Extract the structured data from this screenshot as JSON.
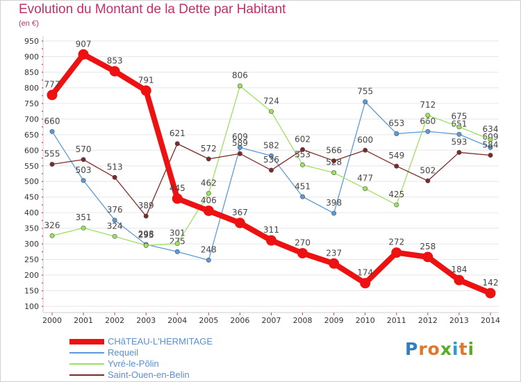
{
  "header": {
    "title": "Evolution du Montant de la Dette par Habitant",
    "subtitle": "(en €)"
  },
  "logo": {
    "letters": [
      "P",
      "r",
      "o",
      "x",
      "i",
      "t",
      "i"
    ],
    "colors": [
      "#2f7fc2",
      "#e0782a",
      "#e0782a",
      "#5aaa2a",
      "#2f9ad0",
      "#e0782a",
      "#5aaa2a"
    ]
  },
  "chart_data": {
    "type": "line",
    "title": "Evolution du Montant de la Dette par Habitant",
    "subtitle": "(en €)",
    "xlabel": "",
    "ylabel": "",
    "x": [
      "2000",
      "2001",
      "2002",
      "2003",
      "2004",
      "2005",
      "2006",
      "2007",
      "2008",
      "2009",
      "2010",
      "2011",
      "2012",
      "2013",
      "2014"
    ],
    "ylim": [
      100,
      950
    ],
    "yticks": [
      100,
      150,
      200,
      250,
      300,
      350,
      400,
      450,
      500,
      550,
      600,
      650,
      700,
      750,
      800,
      850,
      900,
      950
    ],
    "grid": "horizontal",
    "legend_position": "bottom-left",
    "series": [
      {
        "name": "Requeil",
        "color": "#5b9bd5",
        "emphasis": false,
        "values": [
          660,
          503,
          376,
          298,
          275,
          248,
          609,
          582,
          451,
          398,
          755,
          653,
          660,
          651,
          609
        ]
      },
      {
        "name": "Yvré-le-Pôlin",
        "color": "#9ce060",
        "emphasis": false,
        "values": [
          326,
          351,
          324,
          295,
          301,
          462,
          806,
          724,
          553,
          528,
          477,
          425,
          712,
          675,
          634
        ]
      },
      {
        "name": "Saint-Ouen-en-Belin",
        "color": "#7a2a2a",
        "emphasis": false,
        "values": [
          555,
          570,
          513,
          389,
          621,
          572,
          589,
          536,
          602,
          566,
          600,
          549,
          502,
          593,
          584
        ]
      },
      {
        "name": "CHâTEAU-L'HERMITAGE",
        "color": "#ee1111",
        "emphasis": true,
        "values": [
          777,
          907,
          853,
          791,
          445,
          406,
          367,
          311,
          270,
          237,
          174,
          272,
          258,
          184,
          142
        ]
      }
    ]
  },
  "legend": {
    "items": [
      {
        "label": "CHâTEAU-L'HERMITAGE",
        "color": "#ee1111",
        "thick": true
      },
      {
        "label": "Requeil",
        "color": "#5b9bd5",
        "thick": false
      },
      {
        "label": "Yvré-le-Pôlin",
        "color": "#9ce060",
        "thick": false
      },
      {
        "label": "Saint-Ouen-en-Belin",
        "color": "#7a2a2a",
        "thick": false
      }
    ]
  }
}
